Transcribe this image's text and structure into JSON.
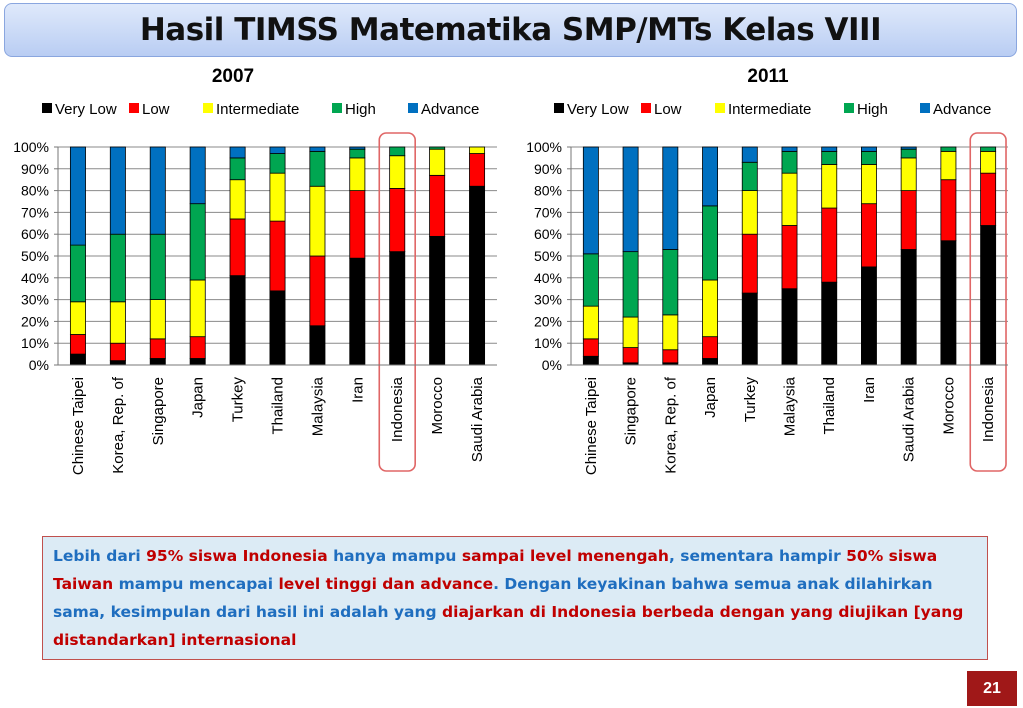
{
  "slide": {
    "title": "Hasil TIMSS Matematika SMP/MTs Kelas VIII",
    "page_number": "21",
    "highlight_color": "#e06666"
  },
  "note": {
    "segments": [
      {
        "text": "Lebih dari ",
        "color": "blue"
      },
      {
        "text": "95% siswa Indonesia",
        "color": "red"
      },
      {
        "text": " hanya mampu ",
        "color": "blue"
      },
      {
        "text": "sampai level menengah",
        "color": "red"
      },
      {
        "text": ", ",
        "color": "blue"
      },
      {
        "text": "sementara hampir ",
        "color": "blue"
      },
      {
        "text": "50% siswa Taiwan",
        "color": "red"
      },
      {
        "text": " mampu mencapai ",
        "color": "blue"
      },
      {
        "text": "level tinggi dan advance",
        "color": "red"
      },
      {
        "text": ". Dengan keyakinan bahwa semua anak dilahirkan sama, kesimpulan dari hasil ini adalah yang ",
        "color": "blue"
      },
      {
        "text": "diajarkan di Indonesia berbeda dengan yang diujikan [yang distandarkan] internasional",
        "color": "red"
      }
    ]
  },
  "chart_data": [
    {
      "type": "bar",
      "stacked": true,
      "title": "2007",
      "ylim": [
        0,
        100
      ],
      "yticks": [
        "0%",
        "10%",
        "20%",
        "30%",
        "40%",
        "50%",
        "60%",
        "70%",
        "80%",
        "90%",
        "100%"
      ],
      "grid": true,
      "legend_position": "top",
      "highlight": "Indonesia",
      "categories": [
        "Chinese Taipei",
        "Korea, Rep. of",
        "Singapore",
        "Japan",
        "Turkey",
        "Thailand",
        "Malaysia",
        "Iran",
        "Indonesia",
        "Morocco",
        "Saudi Arabia"
      ],
      "series": [
        {
          "name": "Very Low",
          "color": "#000000",
          "values": [
            5,
            2,
            3,
            3,
            41,
            34,
            18,
            49,
            52,
            59,
            82
          ]
        },
        {
          "name": "Low",
          "color": "#ff0000",
          "values": [
            9,
            8,
            9,
            10,
            26,
            32,
            32,
            31,
            29,
            28,
            15
          ]
        },
        {
          "name": "Intermediate",
          "color": "#ffff00",
          "values": [
            15,
            19,
            18,
            26,
            18,
            22,
            32,
            15,
            15,
            12,
            3
          ]
        },
        {
          "name": "High",
          "color": "#00a651",
          "values": [
            26,
            31,
            30,
            35,
            10,
            9,
            16,
            4,
            4,
            1,
            0
          ]
        },
        {
          "name": "Advance",
          "color": "#0070c0",
          "values": [
            45,
            40,
            40,
            26,
            5,
            3,
            2,
            1,
            0,
            0,
            0
          ]
        }
      ]
    },
    {
      "type": "bar",
      "stacked": true,
      "title": "2011",
      "ylim": [
        0,
        100
      ],
      "yticks": [
        "0%",
        "10%",
        "20%",
        "30%",
        "40%",
        "50%",
        "60%",
        "70%",
        "80%",
        "90%",
        "100%"
      ],
      "grid": true,
      "legend_position": "top",
      "highlight": "Indonesia",
      "categories": [
        "Chinese Taipei",
        "Singapore",
        "Korea, Rep. of",
        "Japan",
        "Turkey",
        "Malaysia",
        "Thailand",
        "Iran",
        "Saudi Arabia",
        "Morocco",
        "Indonesia"
      ],
      "series": [
        {
          "name": "Very Low",
          "color": "#000000",
          "values": [
            4,
            1,
            1,
            3,
            33,
            35,
            38,
            45,
            53,
            57,
            64
          ]
        },
        {
          "name": "Low",
          "color": "#ff0000",
          "values": [
            8,
            7,
            6,
            10,
            27,
            29,
            34,
            29,
            27,
            28,
            24
          ]
        },
        {
          "name": "Intermediate",
          "color": "#ffff00",
          "values": [
            15,
            14,
            16,
            26,
            20,
            24,
            20,
            18,
            15,
            13,
            10
          ]
        },
        {
          "name": "High",
          "color": "#00a651",
          "values": [
            24,
            30,
            30,
            34,
            13,
            10,
            6,
            6,
            4,
            2,
            2
          ]
        },
        {
          "name": "Advance",
          "color": "#0070c0",
          "values": [
            49,
            48,
            47,
            27,
            7,
            2,
            2,
            2,
            1,
            0,
            0
          ]
        }
      ]
    }
  ]
}
